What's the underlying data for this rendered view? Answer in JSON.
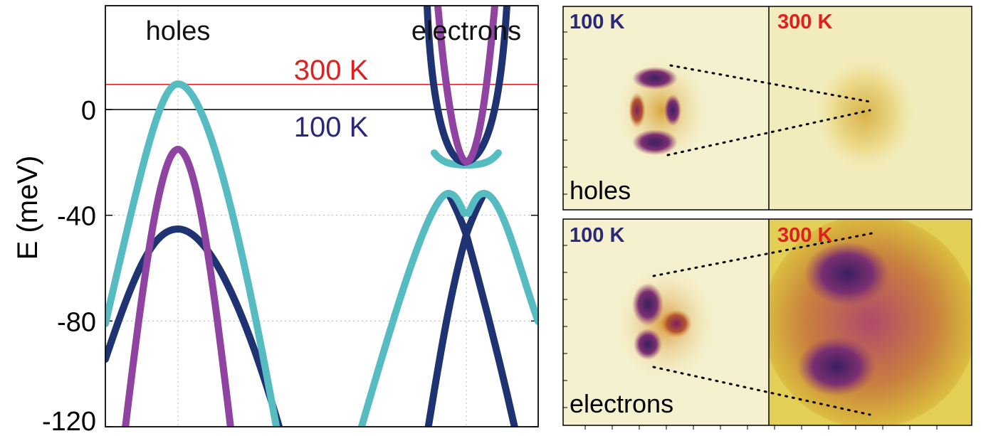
{
  "band_plot": {
    "ylabel": "E (meV)",
    "label_holes": "holes",
    "label_electrons": "electrons",
    "label_300K": "300 K",
    "label_100K": "100 K",
    "colors": {
      "cyan": "#56bcc2",
      "purple": "#8e44a0",
      "navy": "#1f3272",
      "red": "#e02020",
      "blue_text": "#2a2878"
    }
  },
  "chart_data": {
    "type": "line",
    "xlabel": "",
    "ylabel": "E (meV)",
    "ylim": [
      -120,
      38
    ],
    "yticks": [
      0,
      -40,
      -80,
      -120
    ],
    "grid": true,
    "reference_lines": [
      {
        "name": "300 K",
        "y": 9.5,
        "color": "#e02020"
      },
      {
        "name": "100 K",
        "y": 0,
        "color": "#000000"
      }
    ],
    "series": [
      {
        "color": "#56bcc2",
        "description_points": [
          [
            0,
            -80
          ],
          [
            100,
            10
          ],
          [
            200,
            -30
          ]
        ]
      },
      {
        "color": "#8e44a0",
        "description_points": [
          [
            100,
            -15
          ]
        ]
      },
      {
        "color": "#1f3272",
        "description_points": [
          [
            100,
            -45
          ]
        ]
      }
    ]
  },
  "maps": {
    "top_left_label": "100 K",
    "top_right_label": "300 K",
    "bottom_left_label": "100 K",
    "bottom_right_label": "300 K",
    "top_caption": "holes",
    "bottom_caption": "electrons"
  }
}
